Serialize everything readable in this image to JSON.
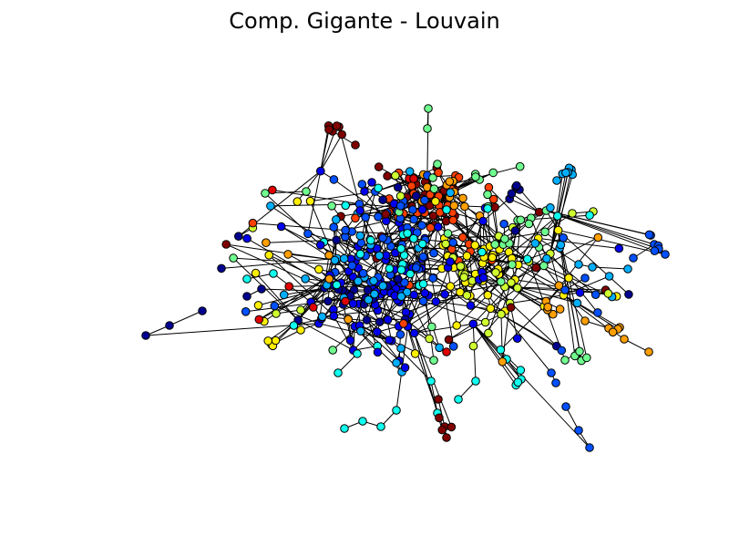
{
  "title": "Comp. Gigante - Louvain",
  "community_colors": [
    "#00008f",
    "#0000ef",
    "#0050ff",
    "#00afff",
    "#10ffef",
    "#70ff8f",
    "#cfff30",
    "#ffef00",
    "#ff9f00",
    "#ff4000",
    "#df0000",
    "#800000"
  ]
}
